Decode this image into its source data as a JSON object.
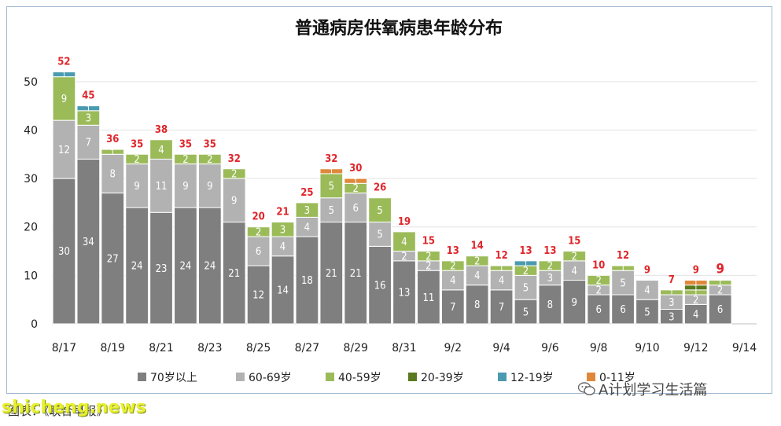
{
  "chart_data": {
    "type": "bar",
    "stacked": true,
    "title": "普通病房供氧病患年龄分布",
    "ylim": [
      0,
      55
    ],
    "yticks": [
      0,
      10,
      20,
      30,
      40,
      50
    ],
    "categories": [
      "8/17",
      "8/18",
      "8/19",
      "8/20",
      "8/21",
      "8/22",
      "8/23",
      "8/24",
      "8/25",
      "8/26",
      "8/27",
      "8/28",
      "8/29",
      "8/30",
      "8/31",
      "9/1",
      "9/2",
      "9/3",
      "9/4",
      "9/5",
      "9/6",
      "9/7",
      "9/8",
      "9/9",
      "9/10",
      "9/11",
      "9/12",
      "9/13",
      "9/14"
    ],
    "xtick_labels": [
      "8/17",
      "",
      "8/19",
      "",
      "8/21",
      "",
      "8/23",
      "",
      "8/25",
      "",
      "8/27",
      "",
      "8/29",
      "",
      "8/31",
      "",
      "9/2",
      "",
      "9/4",
      "",
      "9/6",
      "",
      "9/8",
      "",
      "9/10",
      "",
      "9/12",
      "",
      "9/14"
    ],
    "series": [
      {
        "name": "70岁以上",
        "color": "#7f7f7f",
        "values": [
          30,
          34,
          27,
          24,
          23,
          24,
          24,
          21,
          12,
          14,
          18,
          21,
          21,
          16,
          13,
          11,
          7,
          8,
          7,
          5,
          8,
          9,
          6,
          6,
          5,
          3,
          4,
          6,
          0
        ]
      },
      {
        "name": "60-69岁",
        "color": "#b2b2b2",
        "values": [
          12,
          7,
          8,
          9,
          11,
          9,
          9,
          9,
          6,
          4,
          4,
          5,
          6,
          5,
          2,
          2,
          4,
          4,
          4,
          5,
          3,
          4,
          2,
          5,
          4,
          3,
          2,
          2,
          0
        ]
      },
      {
        "name": "40-59岁",
        "color": "#9bbb59",
        "values": [
          9,
          3,
          1,
          2,
          4,
          2,
          2,
          2,
          2,
          3,
          3,
          5,
          2,
          5,
          4,
          2,
          2,
          2,
          1,
          2,
          2,
          2,
          2,
          1,
          0,
          1,
          1,
          1,
          0
        ]
      },
      {
        "name": "20-39岁",
        "color": "#5a7a1f",
        "values": [
          0,
          0,
          0,
          0,
          0,
          0,
          0,
          0,
          0,
          0,
          0,
          0,
          0,
          0,
          0,
          0,
          0,
          0,
          0,
          0,
          0,
          0,
          0,
          0,
          0,
          0,
          1,
          0,
          0
        ]
      },
      {
        "name": "12-19岁",
        "color": "#4a9bb0",
        "values": [
          1,
          1,
          0,
          0,
          0,
          0,
          0,
          0,
          0,
          0,
          0,
          0,
          0,
          0,
          0,
          0,
          0,
          0,
          0,
          1,
          0,
          0,
          0,
          0,
          0,
          0,
          0,
          0,
          0
        ]
      },
      {
        "name": "0-11岁",
        "color": "#e0883a",
        "values": [
          0,
          0,
          0,
          0,
          0,
          0,
          0,
          0,
          0,
          0,
          0,
          1,
          1,
          0,
          0,
          0,
          0,
          0,
          0,
          0,
          0,
          0,
          0,
          0,
          0,
          0,
          1,
          0,
          0
        ]
      }
    ],
    "totals": [
      52,
      45,
      36,
      35,
      38,
      35,
      35,
      32,
      20,
      21,
      25,
      32,
      30,
      26,
      19,
      15,
      13,
      14,
      12,
      13,
      13,
      15,
      10,
      12,
      9,
      7,
      9,
      9,
      null
    ],
    "segment_labels": [
      [
        "30",
        "12",
        "9",
        "",
        "1",
        ""
      ],
      [
        "34",
        "7",
        "3",
        "",
        "1",
        ""
      ],
      [
        "27",
        "8",
        "1",
        "",
        "",
        ""
      ],
      [
        "24",
        "9",
        "2",
        "",
        "",
        ""
      ],
      [
        "23",
        "11",
        "4",
        "",
        "",
        ""
      ],
      [
        "24",
        "9",
        "2",
        "",
        "",
        ""
      ],
      [
        "24",
        "9",
        "2",
        "",
        "",
        ""
      ],
      [
        "21",
        "9",
        "2",
        "",
        "",
        ""
      ],
      [
        "12",
        "6",
        "2",
        "",
        "",
        ""
      ],
      [
        "14",
        "4",
        "3",
        "",
        "",
        ""
      ],
      [
        "18",
        "4",
        "3",
        "",
        "",
        ""
      ],
      [
        "21",
        "5",
        "5",
        "",
        "",
        "1"
      ],
      [
        "21",
        "6",
        "2",
        "",
        "",
        "1"
      ],
      [
        "16",
        "5",
        "5",
        "",
        "",
        ""
      ],
      [
        "13",
        "2",
        "4",
        "",
        "",
        ""
      ],
      [
        "11",
        "2",
        "2",
        "",
        "",
        ""
      ],
      [
        "7",
        "4",
        "2",
        "",
        "",
        ""
      ],
      [
        "8",
        "4",
        "2",
        "",
        "",
        ""
      ],
      [
        "7",
        "4",
        "1",
        "",
        "",
        ""
      ],
      [
        "5",
        "5",
        "2",
        "",
        "1",
        ""
      ],
      [
        "8",
        "3",
        "2",
        "",
        "",
        ""
      ],
      [
        "9",
        "4",
        "2",
        "",
        "",
        ""
      ],
      [
        "6",
        "2",
        "2",
        "",
        "",
        ""
      ],
      [
        "6",
        "5",
        "1",
        "",
        "",
        ""
      ],
      [
        "5",
        "4",
        "",
        "",
        "",
        ""
      ],
      [
        "3",
        "3",
        "1",
        "",
        "",
        ""
      ],
      [
        "4",
        "2",
        "1",
        "1",
        "",
        "1"
      ],
      [
        "6",
        "2",
        "1",
        "",
        "",
        ""
      ],
      [
        "",
        "",
        "",
        "",
        "",
        ""
      ]
    ],
    "total_label_color": "#e0262b",
    "legend_position": "bottom",
    "grid": true
  },
  "caption": "图表：《联合早报》",
  "watermark": "shicheng.news",
  "wechat_text": "A计划学习生活篇"
}
